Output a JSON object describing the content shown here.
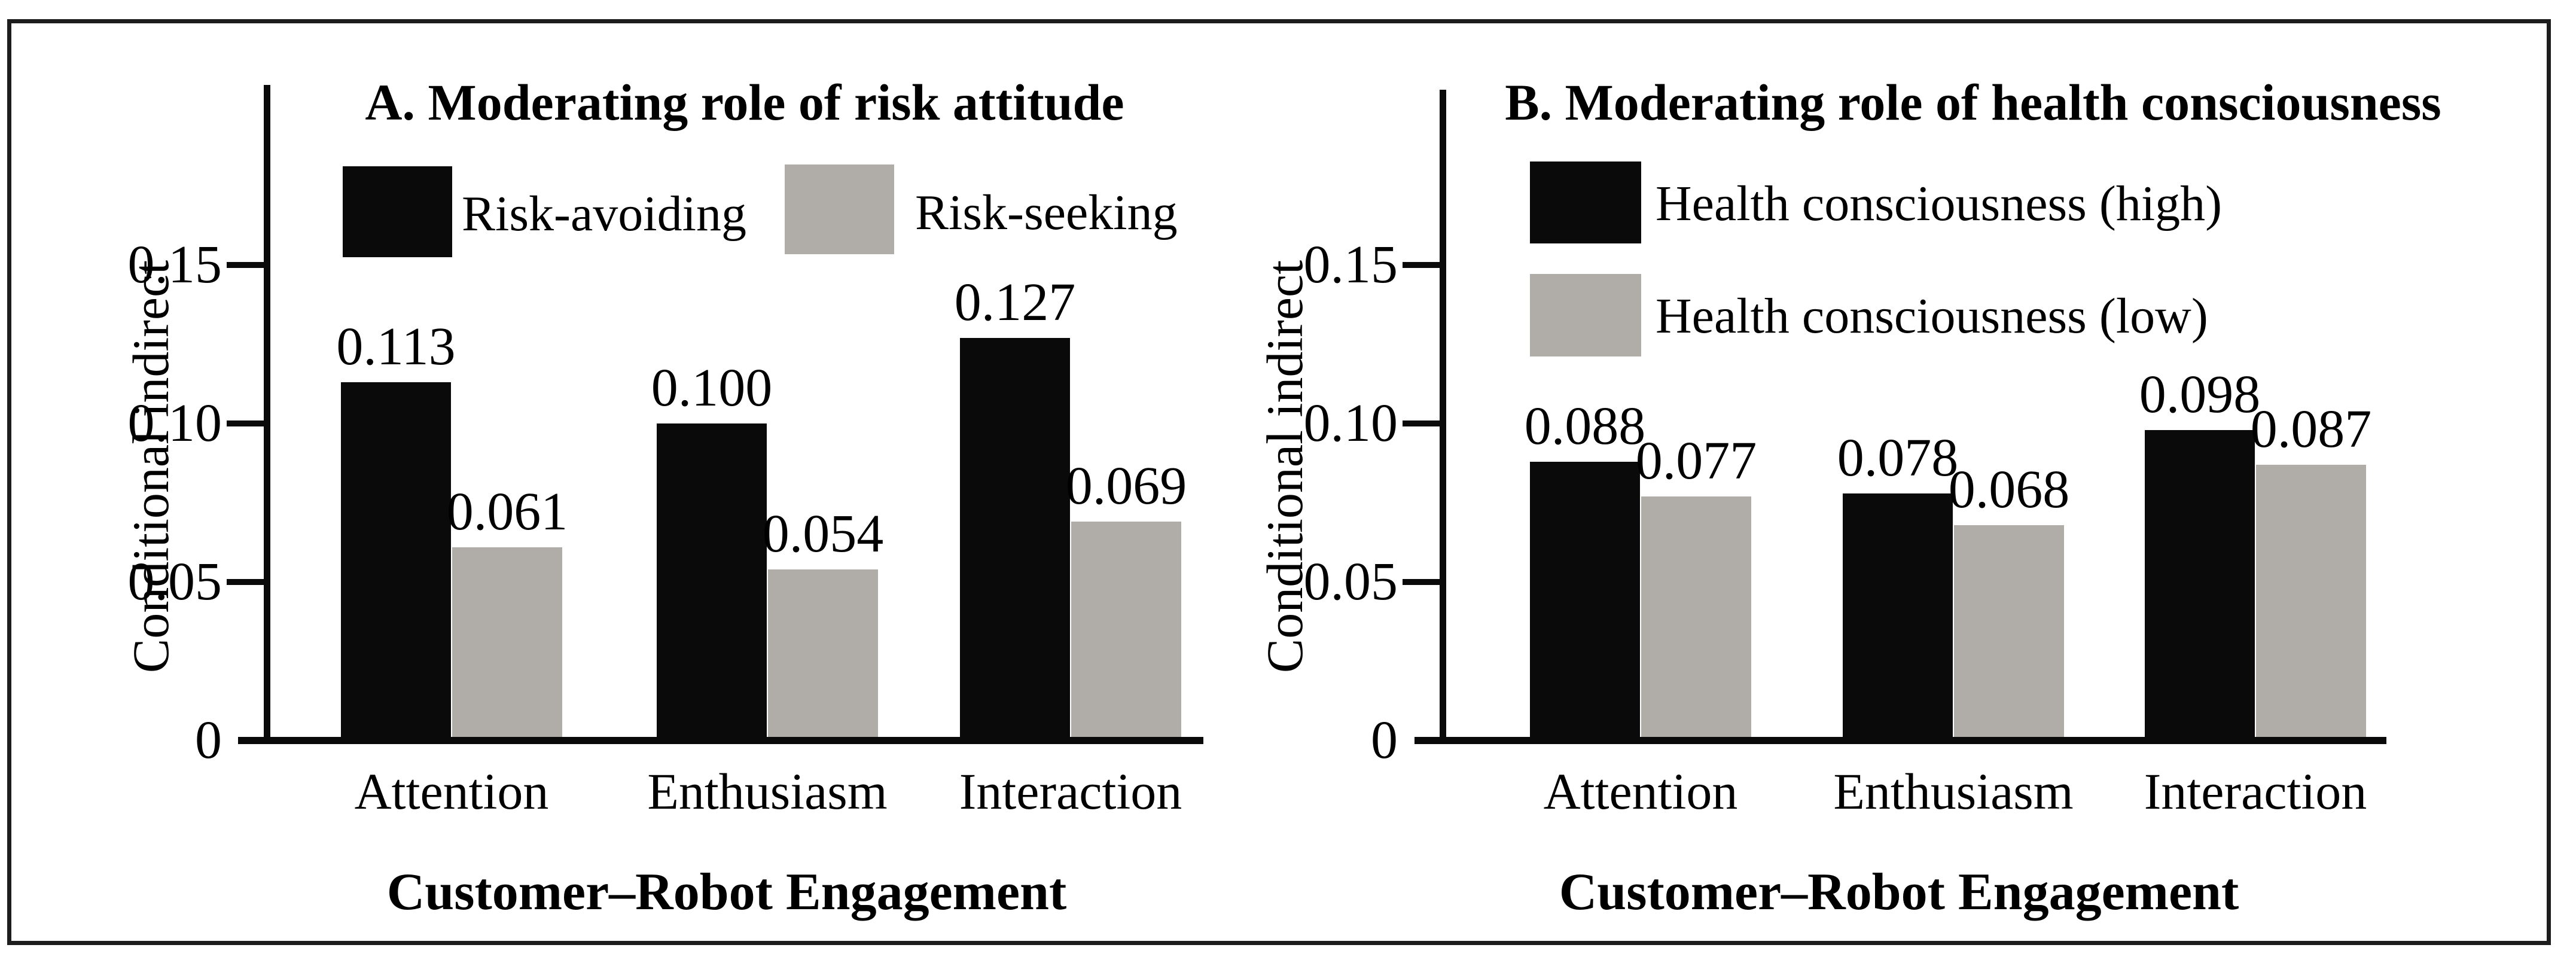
{
  "figure": {
    "background": "#ffffff",
    "border_color": "#1d1d1d",
    "bar_black": "#0a0a0a",
    "bar_gray": "#b0aca7"
  },
  "chart_data": [
    {
      "type": "bar",
      "panel_label": "A",
      "title": "A. Moderating role of risk attitude",
      "xlabel": "Customer–Robot Engagement",
      "ylabel": "Conditional indirect",
      "categories": [
        "Attention",
        "Enthusiasm",
        "Interaction"
      ],
      "series": [
        {
          "name": "Risk-avoiding",
          "color": "#0a0a0a",
          "values": [
            0.113,
            0.1,
            0.127
          ],
          "value_labels": [
            "0.113",
            "0.100",
            "0.127"
          ]
        },
        {
          "name": "Risk-seeking",
          "color": "#b0aca7",
          "values": [
            0.061,
            0.054,
            0.069
          ],
          "value_labels": [
            "0.061",
            "0.054",
            "0.069"
          ]
        }
      ],
      "yticks": [
        {
          "v": 0,
          "label": "0"
        },
        {
          "v": 0.05,
          "label": "0.05"
        },
        {
          "v": 0.1,
          "label": "0.10"
        },
        {
          "v": 0.15,
          "label": "0.15"
        }
      ],
      "ylim": [
        0,
        0.185
      ],
      "grid": false,
      "legend_position": "top horizontal"
    },
    {
      "type": "bar",
      "panel_label": "B",
      "title": "B. Moderating role of health consciousness",
      "xlabel": "Customer–Robot Engagement",
      "ylabel": "Conditional indirect",
      "categories": [
        "Attention",
        "Enthusiasm",
        "Interaction"
      ],
      "series": [
        {
          "name": "Health consciousness (high)",
          "color": "#0a0a0a",
          "values": [
            0.088,
            0.078,
            0.098
          ],
          "value_labels": [
            "0.088",
            "0.078",
            "0.098"
          ]
        },
        {
          "name": "Health consciousness (low)",
          "color": "#b0aca7",
          "values": [
            0.077,
            0.068,
            0.087
          ],
          "value_labels": [
            "0.077",
            "0.068",
            "0.087"
          ]
        }
      ],
      "yticks": [
        {
          "v": 0,
          "label": "0"
        },
        {
          "v": 0.05,
          "label": "0.05"
        },
        {
          "v": 0.1,
          "label": "0.10"
        },
        {
          "v": 0.15,
          "label": "0.15"
        }
      ],
      "ylim": [
        0,
        0.185
      ],
      "grid": false,
      "legend_position": "top vertical"
    }
  ]
}
